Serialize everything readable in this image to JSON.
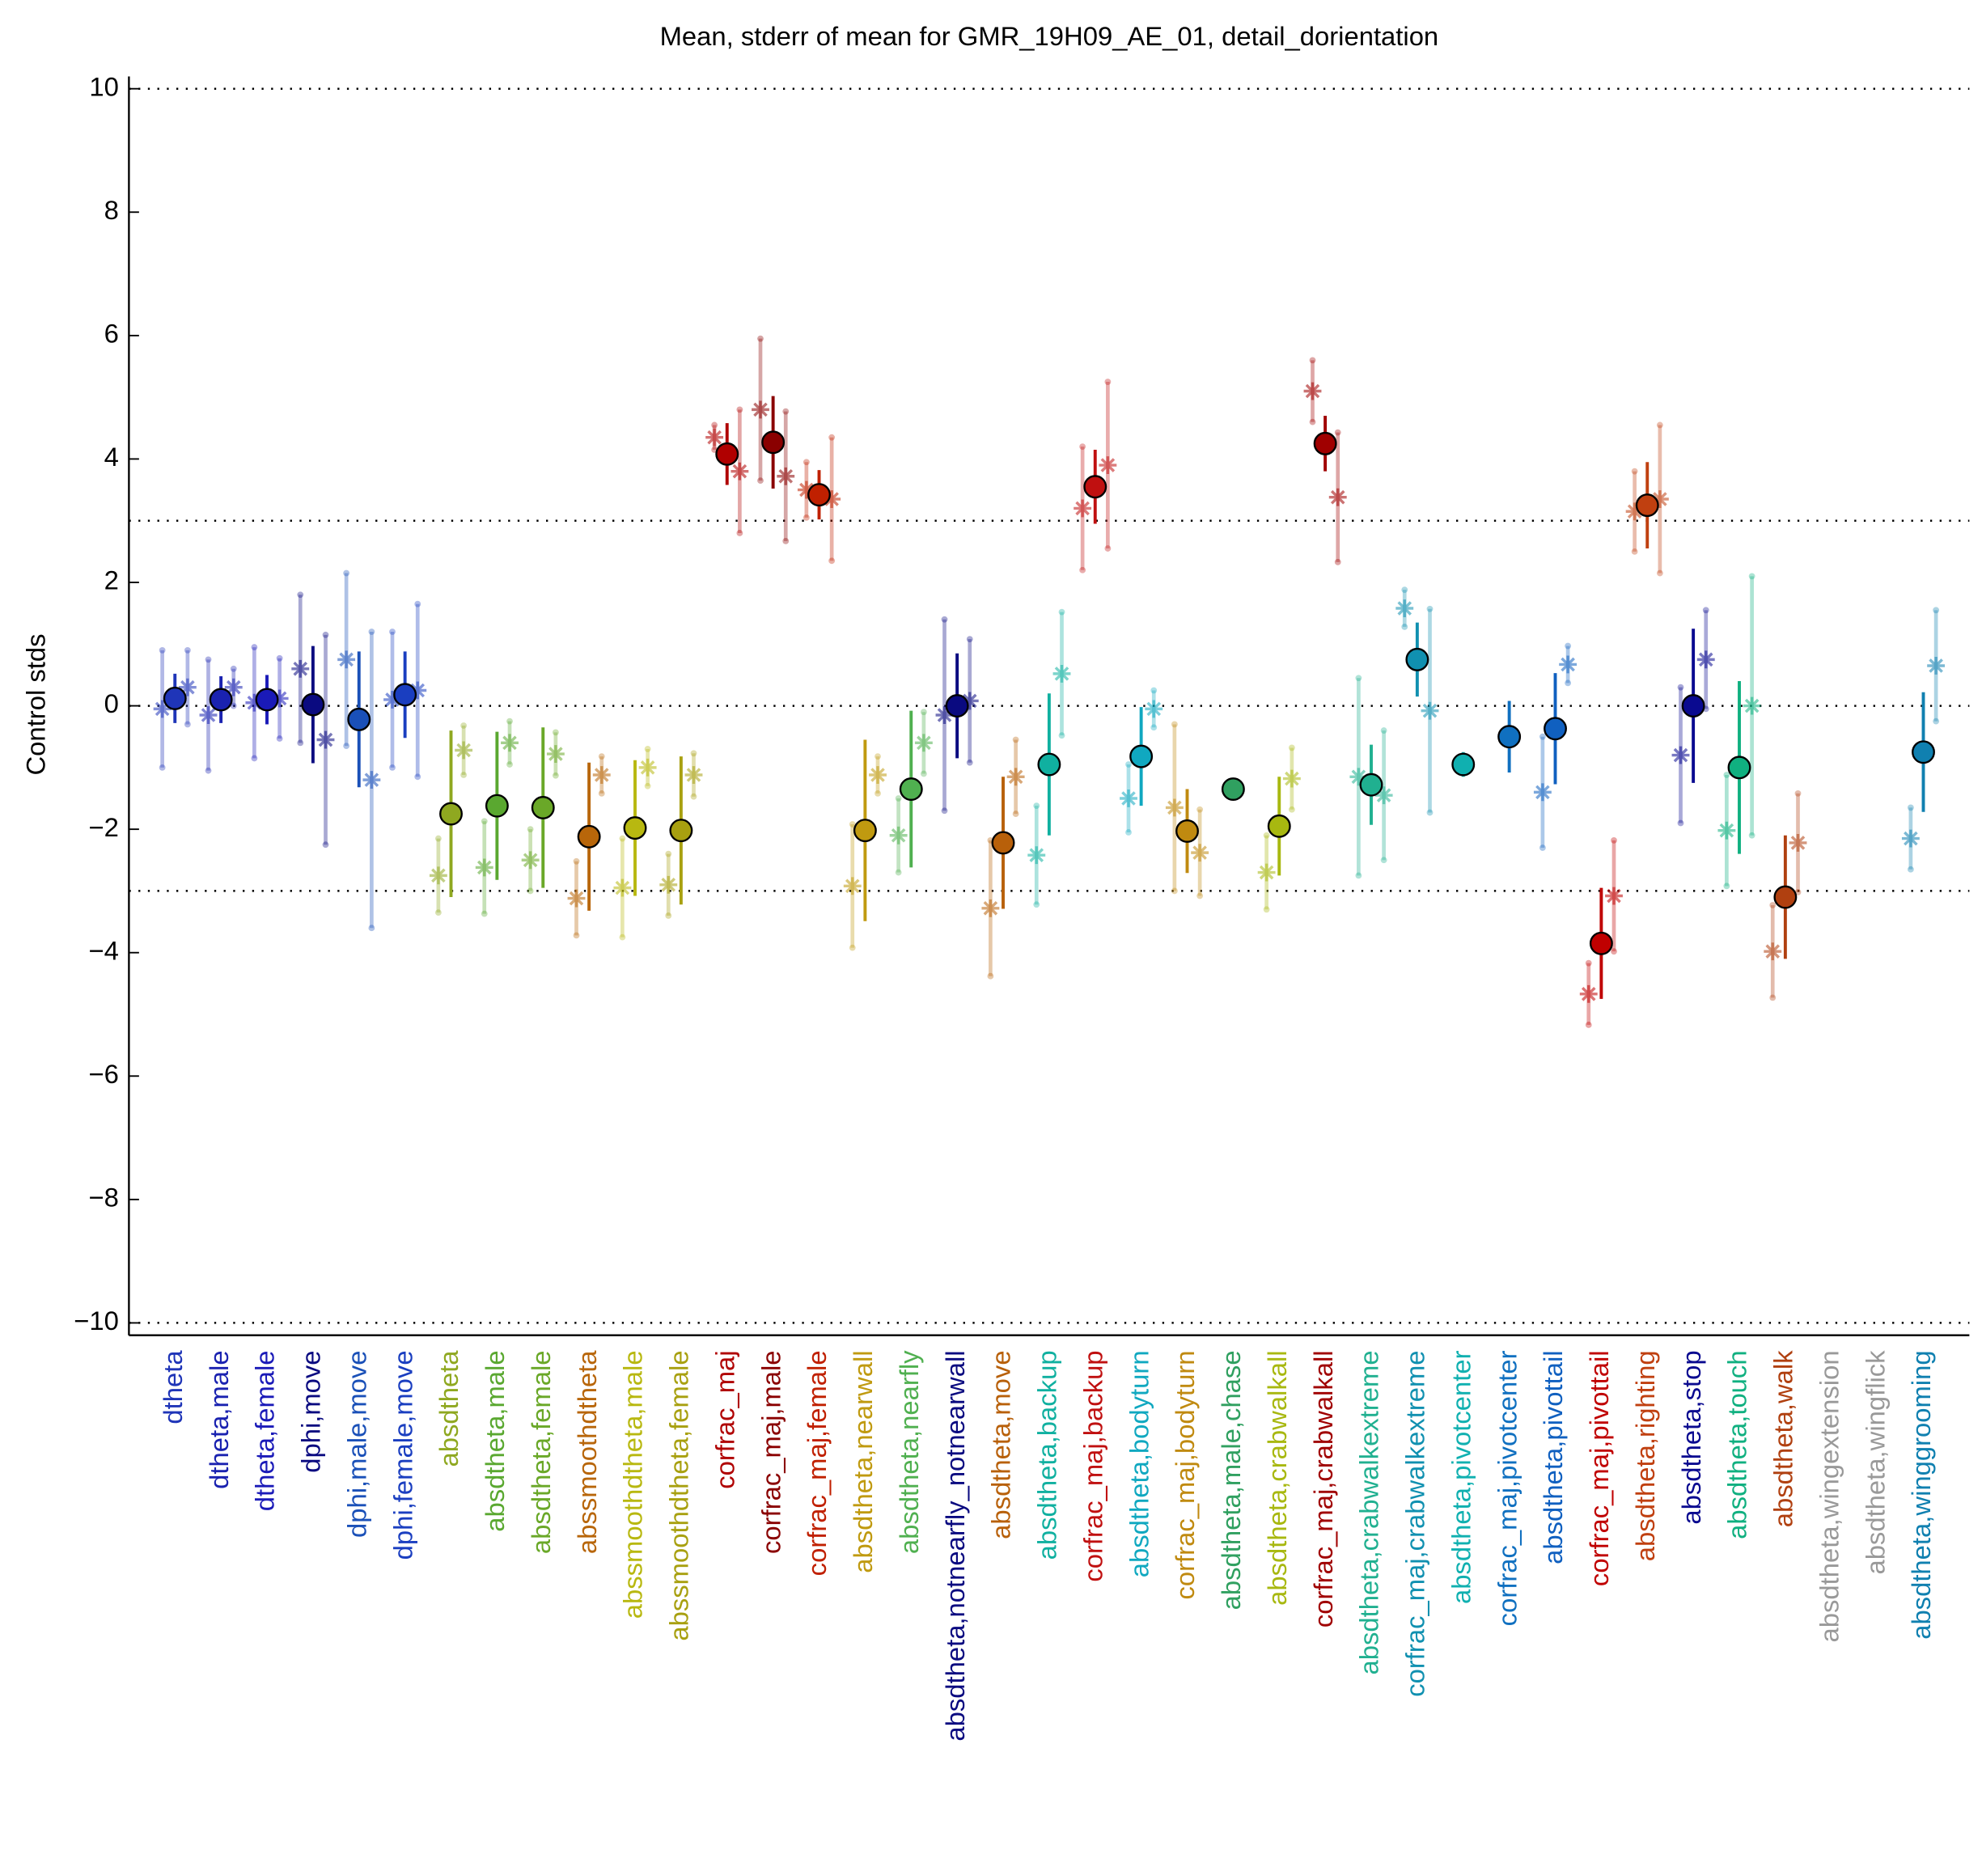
{
  "chart_data": {
    "type": "errorbar",
    "title": "Mean, stderr of mean for GMR_19H09_AE_01, detail_dorientation",
    "y_label": "Control stds",
    "categories": [
      "dtheta",
      "dtheta,male",
      "dtheta,female",
      "dphi,move",
      "dphi,male,move",
      "dphi,female,move",
      "absdtheta",
      "absdtheta,male",
      "absdtheta,female",
      "abssmoothdtheta",
      "abssmoothdtheta,male",
      "abssmoothdtheta,female",
      "corfrac_maj",
      "corfrac_maj,male",
      "corfrac_maj,female",
      "absdtheta,nearwall",
      "absdtheta,nearfly",
      "absdtheta,notnearfly_notnearwall",
      "absdtheta,move",
      "absdtheta,backup",
      "corfrac_maj,backup",
      "absdtheta,bodyturn",
      "corfrac_maj,bodyturn",
      "absdtheta,male,chase",
      "absdtheta,crabwalkall",
      "corfrac_maj,crabwalkall",
      "absdtheta,crabwalkextreme",
      "corfrac_maj,crabwalkextreme",
      "absdtheta,pivotcenter",
      "corfrac_maj,pivotcenter",
      "absdtheta,pivottail",
      "corfrac_maj,pivottail",
      "absdtheta,righting",
      "absdtheta,stop",
      "absdtheta,touch",
      "absdtheta,walk",
      "absdtheta,wingextension",
      "absdtheta,wingflick",
      "absdtheta,winggrooming"
    ],
    "colors": [
      "#1f35b8",
      "#1a22b0",
      "#1a1ab8",
      "#0a0a80",
      "#1a50b8",
      "#1a3ec0",
      "#8fa820",
      "#5aa830",
      "#6aa828",
      "#b8660a",
      "#b8b810",
      "#a8a010",
      "#b00000",
      "#8a0000",
      "#c02000",
      "#c09a10",
      "#50b050",
      "#0a0a80",
      "#b8600a",
      "#10b0a0",
      "#c01010",
      "#10a8c0",
      "#c08a10",
      "#30a060",
      "#a8b810",
      "#a00000",
      "#20b090",
      "#1090b0",
      "#10b0b0",
      "#1070c0",
      "#1060c0",
      "#c00000",
      "#c04010",
      "#0a0a90",
      "#10b080",
      "#b04010",
      "#999999",
      "#999999",
      "#1080b0"
    ],
    "values": [
      0.12,
      0.1,
      0.1,
      0.02,
      -0.22,
      0.18,
      -1.75,
      -1.62,
      -1.65,
      -2.12,
      -1.98,
      -2.02,
      4.08,
      4.27,
      3.42,
      -2.02,
      -1.35,
      0.0,
      -2.22,
      -0.95,
      3.55,
      -0.82,
      -2.03,
      -1.35,
      -1.95,
      4.25,
      -1.28,
      0.75,
      -0.95,
      -0.5,
      -0.37,
      -3.85,
      3.25,
      0.0,
      -1.0,
      -3.1,
      null,
      null,
      -0.75
    ],
    "errors": [
      0.4,
      0.38,
      0.4,
      0.95,
      1.1,
      0.7,
      1.35,
      1.2,
      1.3,
      1.2,
      1.1,
      1.2,
      0.5,
      0.75,
      0.4,
      1.47,
      1.27,
      0.85,
      1.07,
      1.15,
      0.6,
      0.8,
      0.68,
      0,
      0.8,
      0.45,
      0.65,
      0.6,
      0.2,
      0.58,
      0.9,
      0.9,
      0.7,
      1.25,
      1.4,
      1.0,
      null,
      null,
      0.97
    ],
    "left_values": [
      -0.05,
      -0.15,
      0.05,
      0.6,
      0.75,
      0.1,
      -2.75,
      -2.62,
      -2.5,
      -3.12,
      -2.95,
      -2.9,
      4.35,
      4.8,
      3.5,
      -2.92,
      -2.1,
      -0.15,
      -3.28,
      -2.42,
      3.2,
      -1.5,
      -1.65,
      null,
      -2.7,
      5.1,
      -1.15,
      1.58,
      null,
      null,
      -1.4,
      -4.67,
      3.15,
      -0.8,
      -2.02,
      -3.98,
      null,
      null,
      -2.15
    ],
    "left_errors": [
      0.95,
      0.9,
      0.9,
      1.2,
      1.4,
      1.1,
      0.6,
      0.75,
      0.5,
      0.6,
      0.8,
      0.5,
      0.2,
      1.15,
      0.45,
      1.0,
      0.6,
      1.55,
      1.1,
      0.8,
      1.0,
      0.55,
      1.35,
      null,
      0.6,
      0.5,
      1.6,
      0.3,
      null,
      null,
      0.9,
      0.5,
      0.65,
      1.1,
      0.9,
      0.75,
      null,
      null,
      0.5
    ],
    "right_values": [
      0.3,
      0.3,
      0.12,
      -0.55,
      -1.2,
      0.25,
      -0.72,
      -0.6,
      -0.78,
      -1.12,
      -1.0,
      -1.12,
      3.8,
      3.72,
      3.35,
      -1.12,
      -0.6,
      0.08,
      -1.15,
      0.52,
      3.9,
      -0.05,
      -2.38,
      null,
      -1.18,
      3.38,
      -1.45,
      -0.08,
      null,
      null,
      0.67,
      -3.08,
      3.35,
      0.75,
      0.0,
      -2.22,
      null,
      null,
      0.65
    ],
    "right_errors": [
      0.6,
      0.3,
      0.65,
      1.7,
      2.4,
      1.4,
      0.4,
      0.35,
      0.35,
      0.3,
      0.3,
      0.35,
      1.0,
      1.05,
      1.0,
      0.3,
      0.5,
      1.0,
      0.6,
      1.0,
      1.35,
      0.3,
      0.7,
      null,
      0.5,
      1.05,
      1.05,
      1.65,
      null,
      null,
      0.3,
      0.9,
      1.2,
      0.8,
      2.1,
      0.8,
      null,
      null,
      0.9
    ],
    "ylim": [
      -10.2,
      10.2
    ],
    "yticks": [
      {
        "value": -10,
        "label": "−10"
      },
      {
        "value": -8,
        "label": "−8"
      },
      {
        "value": -6,
        "label": "−6"
      },
      {
        "value": -4,
        "label": "−4"
      },
      {
        "value": -2,
        "label": "−2"
      },
      0,
      2,
      4,
      6,
      8,
      10
    ],
    "reference_lines": [
      -10,
      -3,
      0,
      3,
      10
    ]
  }
}
